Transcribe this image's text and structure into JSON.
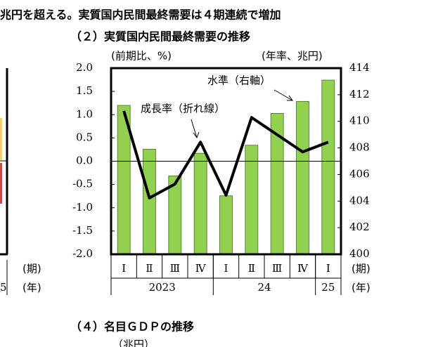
{
  "header": {
    "text": "兆円を超える。実質国内民間最終需要は４期連続で増加"
  },
  "chart_data": {
    "type": "bar_line",
    "title": "（２）実質国内民間最終需要の推移",
    "left_unit": "(前期比、%)",
    "right_unit": "(年率、兆円)",
    "x_unit_period": "(期)",
    "x_unit_year": "(年)",
    "categories": [
      "Ⅰ",
      "Ⅱ",
      "Ⅲ",
      "Ⅳ",
      "Ⅰ",
      "Ⅱ",
      "Ⅲ",
      "Ⅳ",
      "Ⅰ"
    ],
    "years": [
      {
        "label": "2023",
        "start": 0,
        "end": 3
      },
      {
        "label": "24",
        "start": 4,
        "end": 7
      },
      {
        "label": "25",
        "start": 8,
        "end": 8
      }
    ],
    "series": [
      {
        "name": "水準（右軸）",
        "kind": "bar",
        "axis": "y2",
        "color": "#92d050",
        "values": [
          411.2,
          407.9,
          405.9,
          407.6,
          404.4,
          408.2,
          410.6,
          411.5,
          413.1
        ]
      },
      {
        "name": "成長率（折れ線）",
        "kind": "line",
        "axis": "y",
        "color": "#000000",
        "values": [
          1.08,
          -0.79,
          -0.49,
          0.41,
          -0.73,
          0.94,
          0.57,
          0.2,
          0.41
        ]
      }
    ],
    "ylim": [
      -2.0,
      2.0
    ],
    "yticks": [
      {
        "value": 2.0,
        "label": "2.0"
      },
      1.5,
      {
        "value": 1.0,
        "label": "1.0"
      },
      0.5,
      {
        "value": 0.0,
        "label": "0.0"
      },
      -0.5,
      {
        "value": -1.0,
        "label": "-1.0"
      },
      -1.5,
      {
        "value": -2.0,
        "label": "-2.0"
      }
    ],
    "y2lim": [
      400,
      414
    ],
    "y2ticks": [
      400,
      402,
      404,
      406,
      408,
      410,
      412,
      414
    ]
  },
  "left_fragment": {
    "period_unit": "(期)",
    "year_unit": "(年)",
    "year_tail": "5"
  },
  "next_section": {
    "title": "（４）名目ＧＤＰの推移",
    "unit": "（兆円）"
  }
}
